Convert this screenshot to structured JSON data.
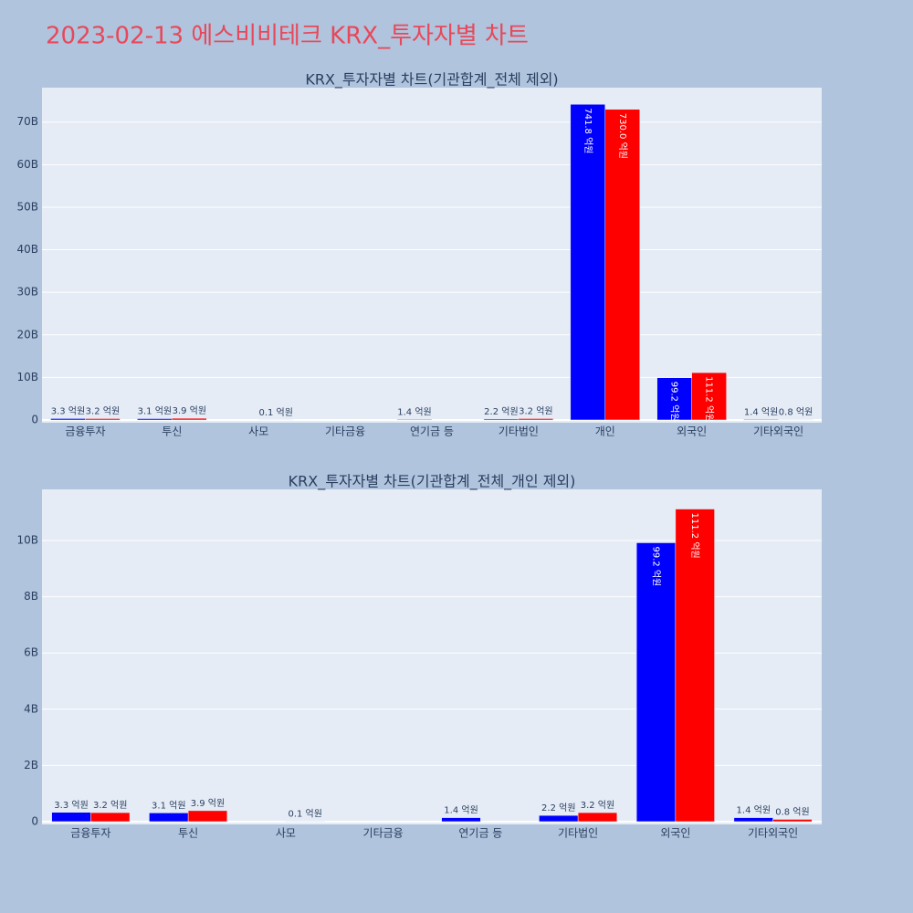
{
  "title": "2023-02-13 에스비비테크 KRX_투자자별 차트",
  "chart_data": [
    {
      "type": "bar",
      "title": "KRX_투자자별 차트(기관합계_전체 제외)",
      "categories": [
        "금융투자",
        "투신",
        "사모",
        "기타금융",
        "연기금 등",
        "기타법인",
        "개인",
        "외국인",
        "기타외국인"
      ],
      "series": [
        {
          "color": "#0000ff",
          "values": [
            330000000,
            310000000,
            null,
            null,
            140000000,
            220000000,
            74180000000,
            9920000000,
            140000000
          ],
          "value_labels": [
            "3.3 억원",
            "3.1 억원",
            null,
            null,
            "1.4 억원",
            "2.2 억원",
            "741.8 억원",
            "99.2 억원",
            "1.4 억원"
          ]
        },
        {
          "color": "#ff0000",
          "values": [
            320000000,
            390000000,
            10000000,
            null,
            null,
            320000000,
            73000000000,
            11120000000,
            80000000
          ],
          "value_labels": [
            "3.2 억원",
            "3.9 억원",
            "0.1 억원",
            null,
            null,
            "3.2 억원",
            "730.0 억원",
            "111.2 억원",
            "0.8 억원"
          ]
        }
      ],
      "ylim": [
        -650000000,
        78100000000
      ],
      "yticks": [
        0,
        {
          "value": 10000000000,
          "label": "10B"
        },
        {
          "value": 20000000000,
          "label": "20B"
        },
        {
          "value": 30000000000,
          "label": "30B"
        },
        {
          "value": 40000000000,
          "label": "40B"
        },
        {
          "value": 50000000000,
          "label": "50B"
        },
        {
          "value": 60000000000,
          "label": "60B"
        },
        {
          "value": 70000000000,
          "label": "70B"
        }
      ],
      "grid": true
    },
    {
      "type": "bar",
      "title": "KRX_투자자별 차트(기관합계_전체_개인 제외)",
      "categories": [
        "금융투자",
        "투신",
        "사모",
        "기타금융",
        "연기금 등",
        "기타법인",
        "외국인",
        "기타외국인"
      ],
      "series": [
        {
          "color": "#0000ff",
          "values": [
            330000000,
            310000000,
            null,
            null,
            140000000,
            220000000,
            9920000000,
            140000000
          ],
          "value_labels": [
            "3.3 억원",
            "3.1 억원",
            null,
            null,
            "1.4 억원",
            "2.2 억원",
            "99.2 억원",
            "1.4 억원"
          ]
        },
        {
          "color": "#ff0000",
          "values": [
            320000000,
            390000000,
            10000000,
            null,
            null,
            320000000,
            11120000000,
            80000000
          ],
          "value_labels": [
            "3.2 억원",
            "3.9 억원",
            "0.1 억원",
            null,
            null,
            "3.2 억원",
            "111.2 억원",
            "0.8 억원"
          ]
        }
      ],
      "ylim": [
        -100000000,
        11820000000
      ],
      "yticks": [
        0,
        {
          "value": 2000000000,
          "label": "2B"
        },
        {
          "value": 4000000000,
          "label": "4B"
        },
        {
          "value": 6000000000,
          "label": "6B"
        },
        {
          "value": 8000000000,
          "label": "8B"
        },
        {
          "value": 10000000000,
          "label": "10B"
        }
      ],
      "grid": true
    }
  ]
}
